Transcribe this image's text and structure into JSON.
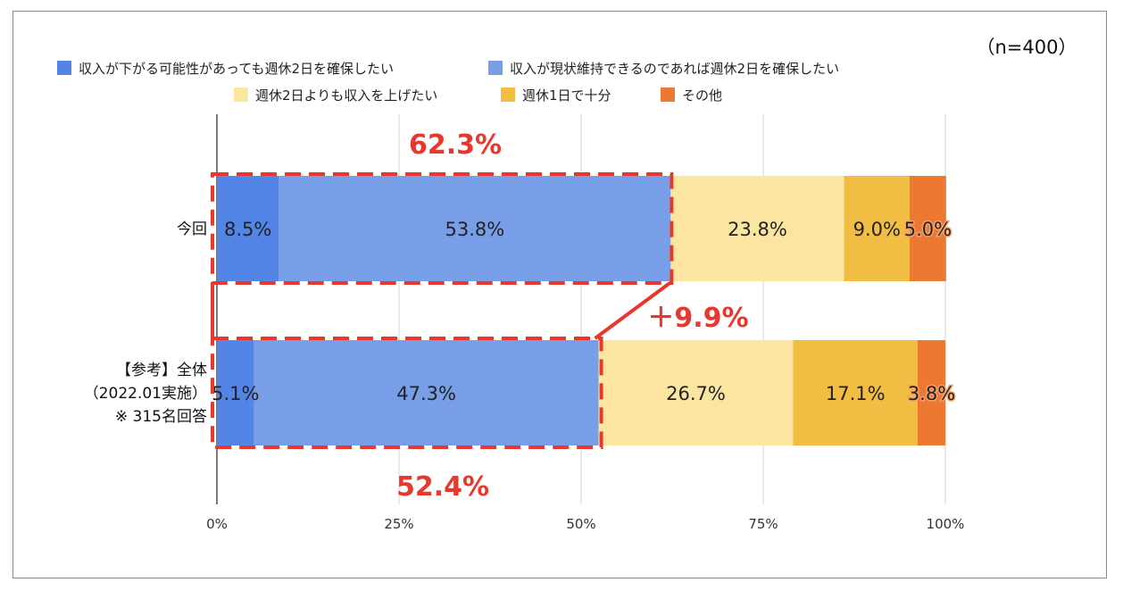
{
  "chart_data": {
    "type": "bar",
    "orientation": "horizontal",
    "stacked": true,
    "percent": true,
    "sample_note": "（n=400）",
    "categories": [
      [
        "今回"
      ],
      [
        "【参考】全体",
        "（2022.01実施）",
        "※ 315名回答"
      ]
    ],
    "series": [
      {
        "name": "収入が下がる可能性があっても週休2日を確保したい",
        "color": "#5385e6",
        "values": [
          8.5,
          5.1
        ]
      },
      {
        "name": "収入が現状維持できるのであれば週休2日を確保したい",
        "color": "#779ee6",
        "values": [
          53.8,
          47.3
        ]
      },
      {
        "name": "週休2日よりも収入を上げたい",
        "color": "#fce5a1",
        "values": [
          23.8,
          26.7
        ]
      },
      {
        "name": "週休1日で十分",
        "color": "#f1bd42",
        "values": [
          9.0,
          17.1
        ]
      },
      {
        "name": "その他",
        "color": "#ed7832",
        "values": [
          5.0,
          3.8
        ]
      }
    ],
    "data_labels": [
      [
        "8.5%",
        "53.8%",
        "23.8%",
        "9.0%",
        "5.0%"
      ],
      [
        "5.1%",
        "47.3%",
        "26.7%",
        "17.1%",
        "3.8%"
      ]
    ],
    "xlim": [
      0,
      100
    ],
    "x_ticks": [
      "0%",
      "25%",
      "50%",
      "75%",
      "100%"
    ],
    "x_tick_values": [
      0,
      25,
      50,
      75,
      100
    ],
    "grid": true,
    "legend_position": "top",
    "annotations": {
      "top_total": "62.3%",
      "bottom_total": "52.4%",
      "difference": "＋9.9%",
      "top_total_value": 62.3,
      "bottom_total_value": 52.4
    },
    "accent_color": "#e8382e"
  }
}
